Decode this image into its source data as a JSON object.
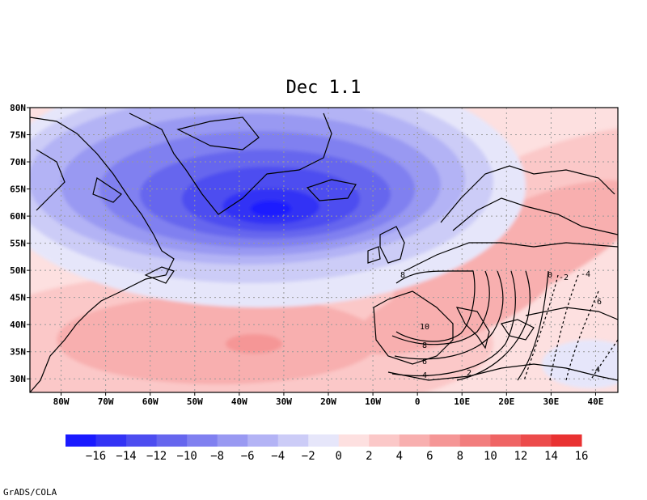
{
  "title": "Dec 1.1",
  "credit": "GrADS/COLA",
  "map": {
    "lon_range": [
      -87,
      45
    ],
    "lat_range": [
      27.5,
      80
    ],
    "grid": true,
    "lat_ticks": [
      "30N",
      "35N",
      "40N",
      "45N",
      "50N",
      "55N",
      "60N",
      "65N",
      "70N",
      "75N",
      "80N"
    ],
    "lon_ticks": [
      "80W",
      "70W",
      "60W",
      "50W",
      "40W",
      "30W",
      "20W",
      "10W",
      "0",
      "10E",
      "20E",
      "30E",
      "40E"
    ],
    "shading_field": {
      "centers": [
        {
          "lon": -33,
          "lat": 61,
          "value": -16
        },
        {
          "lon": -35,
          "lat": 37,
          "value": 7
        },
        {
          "lon": 18,
          "lat": 53,
          "value": 6
        }
      ]
    },
    "contour_labels": [
      "8",
      "10",
      "8",
      "6",
      "4",
      "2",
      "0",
      "-2",
      "-4",
      "-6",
      "-4"
    ]
  },
  "colorbar": {
    "labels": [
      "-16",
      "-14",
      "-12",
      "-10",
      "-8",
      "-6",
      "-4",
      "-2",
      "0",
      "2",
      "4",
      "6",
      "8",
      "10",
      "12",
      "14",
      "16"
    ],
    "colors": [
      "#1a1aff",
      "#3333f5",
      "#4d4df0",
      "#6666ee",
      "#8080f0",
      "#9999f2",
      "#b3b3f5",
      "#ccccf7",
      "#e6e6fa",
      "#fde0e0",
      "#fbc8c8",
      "#f8afaf",
      "#f59696",
      "#f27d7d",
      "#ef6464",
      "#ec4b4b",
      "#e93232"
    ]
  }
}
